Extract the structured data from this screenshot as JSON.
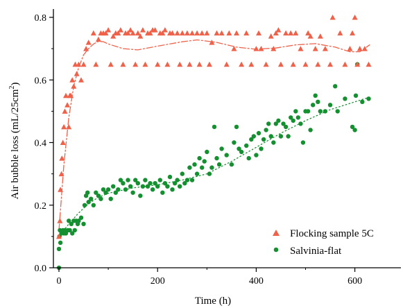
{
  "chart_data": {
    "type": "scatter",
    "xlabel": "Time (h)",
    "ylabel_main": "Air bubble loss (mL/25cm",
    "ylabel_sup": "2",
    "ylabel_close": ")",
    "xlim": [
      -15,
      630
    ],
    "ylim": [
      0,
      0.8
    ],
    "xticks": [
      0,
      200,
      400,
      600
    ],
    "yticks": [
      0.0,
      0.2,
      0.4,
      0.6,
      0.8
    ],
    "xtick_labels": [
      "0",
      "200",
      "400",
      "600"
    ],
    "ytick_labels": [
      "0.0",
      "0.2",
      "0.4",
      "0.6",
      "0.8"
    ],
    "legend_position": "bottom-right",
    "series": [
      {
        "name": "Flocking sample 5C",
        "marker": "triangle",
        "color": "#f0614a",
        "fit_style": "dash-dot",
        "points": [
          [
            0,
            0.1
          ],
          [
            2,
            0.15
          ],
          [
            3,
            0.25
          ],
          [
            5,
            0.3
          ],
          [
            6,
            0.35
          ],
          [
            8,
            0.4
          ],
          [
            10,
            0.45
          ],
          [
            12,
            0.5
          ],
          [
            14,
            0.55
          ],
          [
            17,
            0.52
          ],
          [
            20,
            0.45
          ],
          [
            22,
            0.55
          ],
          [
            24,
            0.55
          ],
          [
            27,
            0.6
          ],
          [
            30,
            0.58
          ],
          [
            33,
            0.65
          ],
          [
            36,
            0.62
          ],
          [
            40,
            0.65
          ],
          [
            45,
            0.6
          ],
          [
            50,
            0.65
          ],
          [
            55,
            0.7
          ],
          [
            60,
            0.72
          ],
          [
            70,
            0.75
          ],
          [
            75,
            0.65
          ],
          [
            80,
            0.73
          ],
          [
            85,
            0.75
          ],
          [
            90,
            0.75
          ],
          [
            95,
            0.75
          ],
          [
            100,
            0.76
          ],
          [
            105,
            0.65
          ],
          [
            110,
            0.74
          ],
          [
            115,
            0.75
          ],
          [
            120,
            0.75
          ],
          [
            125,
            0.76
          ],
          [
            130,
            0.65
          ],
          [
            135,
            0.75
          ],
          [
            140,
            0.75
          ],
          [
            145,
            0.76
          ],
          [
            150,
            0.75
          ],
          [
            155,
            0.65
          ],
          [
            160,
            0.75
          ],
          [
            165,
            0.74
          ],
          [
            170,
            0.76
          ],
          [
            175,
            0.65
          ],
          [
            180,
            0.75
          ],
          [
            185,
            0.75
          ],
          [
            190,
            0.76
          ],
          [
            195,
            0.76
          ],
          [
            200,
            0.65
          ],
          [
            205,
            0.75
          ],
          [
            210,
            0.75
          ],
          [
            215,
            0.76
          ],
          [
            220,
            0.65
          ],
          [
            225,
            0.75
          ],
          [
            230,
            0.75
          ],
          [
            240,
            0.75
          ],
          [
            245,
            0.65
          ],
          [
            250,
            0.75
          ],
          [
            260,
            0.75
          ],
          [
            265,
            0.65
          ],
          [
            270,
            0.75
          ],
          [
            280,
            0.75
          ],
          [
            285,
            0.65
          ],
          [
            290,
            0.75
          ],
          [
            300,
            0.75
          ],
          [
            305,
            0.65
          ],
          [
            310,
            0.72
          ],
          [
            320,
            0.75
          ],
          [
            330,
            0.75
          ],
          [
            340,
            0.65
          ],
          [
            345,
            0.75
          ],
          [
            355,
            0.7
          ],
          [
            360,
            0.75
          ],
          [
            370,
            0.65
          ],
          [
            380,
            0.75
          ],
          [
            390,
            0.65
          ],
          [
            400,
            0.7
          ],
          [
            405,
            0.75
          ],
          [
            410,
            0.7
          ],
          [
            420,
            0.65
          ],
          [
            430,
            0.74
          ],
          [
            435,
            0.7
          ],
          [
            440,
            0.75
          ],
          [
            445,
            0.76
          ],
          [
            450,
            0.65
          ],
          [
            460,
            0.75
          ],
          [
            470,
            0.75
          ],
          [
            475,
            0.65
          ],
          [
            480,
            0.75
          ],
          [
            490,
            0.7
          ],
          [
            500,
            0.65
          ],
          [
            505,
            0.75
          ],
          [
            510,
            0.74
          ],
          [
            520,
            0.7
          ],
          [
            525,
            0.65
          ],
          [
            530,
            0.74
          ],
          [
            540,
            0.7
          ],
          [
            550,
            0.65
          ],
          [
            555,
            0.8
          ],
          [
            570,
            0.75
          ],
          [
            580,
            0.65
          ],
          [
            590,
            0.7
          ],
          [
            595,
            0.75
          ],
          [
            600,
            0.8
          ],
          [
            605,
            0.65
          ],
          [
            610,
            0.7
          ],
          [
            620,
            0.7
          ],
          [
            628,
            0.65
          ]
        ],
        "fit": [
          [
            0,
            0.12
          ],
          [
            10,
            0.33
          ],
          [
            20,
            0.48
          ],
          [
            30,
            0.58
          ],
          [
            40,
            0.64
          ],
          [
            50,
            0.68
          ],
          [
            60,
            0.7
          ],
          [
            70,
            0.715
          ],
          [
            80,
            0.723
          ],
          [
            90,
            0.722
          ],
          [
            100,
            0.715
          ],
          [
            130,
            0.7
          ],
          [
            160,
            0.696
          ],
          [
            200,
            0.708
          ],
          [
            250,
            0.722
          ],
          [
            280,
            0.728
          ],
          [
            320,
            0.72
          ],
          [
            360,
            0.705
          ],
          [
            400,
            0.698
          ],
          [
            440,
            0.702
          ],
          [
            480,
            0.712
          ],
          [
            520,
            0.716
          ],
          [
            560,
            0.705
          ],
          [
            590,
            0.69
          ],
          [
            610,
            0.69
          ],
          [
            630,
            0.712
          ]
        ]
      },
      {
        "name": "Salvinia-flat",
        "marker": "circle",
        "color": "#159031",
        "fit_style": "dotted",
        "points": [
          [
            0,
            0.0
          ],
          [
            0,
            0.06
          ],
          [
            1,
            0.1
          ],
          [
            2,
            0.12
          ],
          [
            3,
            0.08
          ],
          [
            5,
            0.11
          ],
          [
            8,
            0.12
          ],
          [
            10,
            0.11
          ],
          [
            12,
            0.12
          ],
          [
            14,
            0.11
          ],
          [
            18,
            0.12
          ],
          [
            20,
            0.15
          ],
          [
            22,
            0.12
          ],
          [
            25,
            0.14
          ],
          [
            27,
            0.11
          ],
          [
            30,
            0.15
          ],
          [
            32,
            0.12
          ],
          [
            35,
            0.15
          ],
          [
            38,
            0.14
          ],
          [
            40,
            0.15
          ],
          [
            45,
            0.16
          ],
          [
            50,
            0.14
          ],
          [
            52,
            0.2
          ],
          [
            55,
            0.23
          ],
          [
            58,
            0.24
          ],
          [
            60,
            0.21
          ],
          [
            65,
            0.22
          ],
          [
            70,
            0.2
          ],
          [
            75,
            0.24
          ],
          [
            80,
            0.23
          ],
          [
            85,
            0.22
          ],
          [
            90,
            0.25
          ],
          [
            95,
            0.24
          ],
          [
            100,
            0.25
          ],
          [
            105,
            0.22
          ],
          [
            110,
            0.26
          ],
          [
            115,
            0.24
          ],
          [
            120,
            0.25
          ],
          [
            125,
            0.28
          ],
          [
            130,
            0.27
          ],
          [
            135,
            0.25
          ],
          [
            140,
            0.28
          ],
          [
            145,
            0.26
          ],
          [
            150,
            0.24
          ],
          [
            155,
            0.28
          ],
          [
            160,
            0.27
          ],
          [
            165,
            0.23
          ],
          [
            170,
            0.26
          ],
          [
            175,
            0.28
          ],
          [
            180,
            0.26
          ],
          [
            185,
            0.27
          ],
          [
            190,
            0.25
          ],
          [
            195,
            0.27
          ],
          [
            200,
            0.26
          ],
          [
            205,
            0.28
          ],
          [
            210,
            0.24
          ],
          [
            215,
            0.27
          ],
          [
            220,
            0.26
          ],
          [
            225,
            0.29
          ],
          [
            230,
            0.25
          ],
          [
            235,
            0.27
          ],
          [
            240,
            0.28
          ],
          [
            245,
            0.26
          ],
          [
            250,
            0.3
          ],
          [
            255,
            0.27
          ],
          [
            260,
            0.28
          ],
          [
            265,
            0.32
          ],
          [
            270,
            0.28
          ],
          [
            275,
            0.33
          ],
          [
            280,
            0.3
          ],
          [
            285,
            0.35
          ],
          [
            290,
            0.32
          ],
          [
            295,
            0.34
          ],
          [
            300,
            0.37
          ],
          [
            305,
            0.3
          ],
          [
            310,
            0.32
          ],
          [
            315,
            0.45
          ],
          [
            320,
            0.35
          ],
          [
            325,
            0.33
          ],
          [
            330,
            0.38
          ],
          [
            340,
            0.36
          ],
          [
            350,
            0.33
          ],
          [
            355,
            0.4
          ],
          [
            360,
            0.45
          ],
          [
            365,
            0.38
          ],
          [
            370,
            0.37
          ],
          [
            380,
            0.39
          ],
          [
            385,
            0.35
          ],
          [
            390,
            0.41
          ],
          [
            395,
            0.42
          ],
          [
            400,
            0.36
          ],
          [
            405,
            0.43
          ],
          [
            410,
            0.38
          ],
          [
            415,
            0.41
          ],
          [
            420,
            0.44
          ],
          [
            425,
            0.46
          ],
          [
            430,
            0.42
          ],
          [
            435,
            0.4
          ],
          [
            440,
            0.46
          ],
          [
            445,
            0.47
          ],
          [
            450,
            0.42
          ],
          [
            455,
            0.46
          ],
          [
            460,
            0.45
          ],
          [
            465,
            0.42
          ],
          [
            470,
            0.48
          ],
          [
            475,
            0.47
          ],
          [
            480,
            0.5
          ],
          [
            485,
            0.48
          ],
          [
            490,
            0.46
          ],
          [
            495,
            0.4
          ],
          [
            500,
            0.5
          ],
          [
            505,
            0.5
          ],
          [
            510,
            0.44
          ],
          [
            515,
            0.52
          ],
          [
            520,
            0.55
          ],
          [
            525,
            0.53
          ],
          [
            530,
            0.5
          ],
          [
            540,
            0.5
          ],
          [
            550,
            0.52
          ],
          [
            560,
            0.58
          ],
          [
            565,
            0.5
          ],
          [
            580,
            0.54
          ],
          [
            595,
            0.45
          ],
          [
            600,
            0.44
          ],
          [
            602,
            0.55
          ],
          [
            605,
            0.65
          ],
          [
            615,
            0.53
          ],
          [
            628,
            0.54
          ]
        ],
        "fit": [
          [
            0,
            0.1
          ],
          [
            20,
            0.14
          ],
          [
            40,
            0.175
          ],
          [
            60,
            0.205
          ],
          [
            80,
            0.225
          ],
          [
            100,
            0.238
          ],
          [
            150,
            0.255
          ],
          [
            200,
            0.265
          ],
          [
            250,
            0.28
          ],
          [
            300,
            0.3
          ],
          [
            350,
            0.34
          ],
          [
            400,
            0.385
          ],
          [
            450,
            0.43
          ],
          [
            500,
            0.47
          ],
          [
            550,
            0.505
          ],
          [
            600,
            0.53
          ],
          [
            630,
            0.545
          ]
        ]
      }
    ]
  }
}
